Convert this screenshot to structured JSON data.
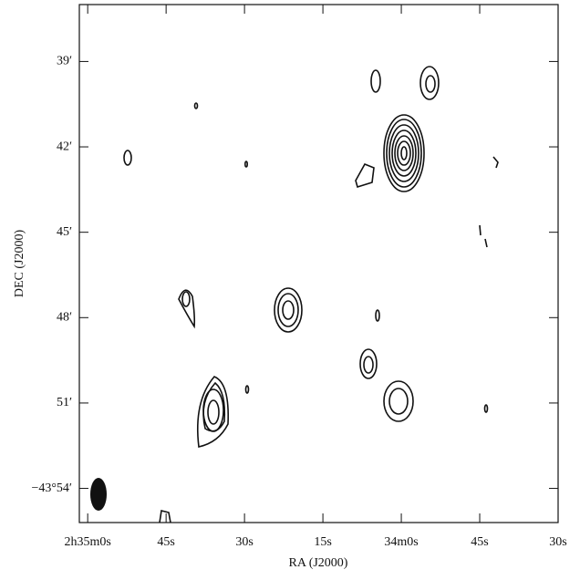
{
  "chart_data": {
    "type": "contour",
    "xlabel": "RA (J2000)",
    "ylabel": "DEC (J2000)",
    "xlim": [
      2101.6,
      2010
    ],
    "xticks": [
      {
        "value": 2100,
        "label": "2h35m0s"
      },
      {
        "value": 2085,
        "label": "45s"
      },
      {
        "value": 2070,
        "label": "30s"
      },
      {
        "value": 2055,
        "label": "15s"
      },
      {
        "value": 2040,
        "label": "34m0s"
      },
      {
        "value": 2025,
        "label": "45s"
      },
      {
        "value": 2010,
        "label": "30s"
      }
    ],
    "ylim": [
      -2635.2,
      -2617.0
    ],
    "yticks": [
      {
        "value": -2619,
        "label": "39′"
      },
      {
        "value": -2622,
        "label": "42′"
      },
      {
        "value": -2625,
        "label": "45′"
      },
      {
        "value": -2628,
        "label": "48′"
      },
      {
        "value": -2631,
        "label": "51′"
      },
      {
        "value": -2634,
        "label": "−43°54′"
      }
    ]
  }
}
